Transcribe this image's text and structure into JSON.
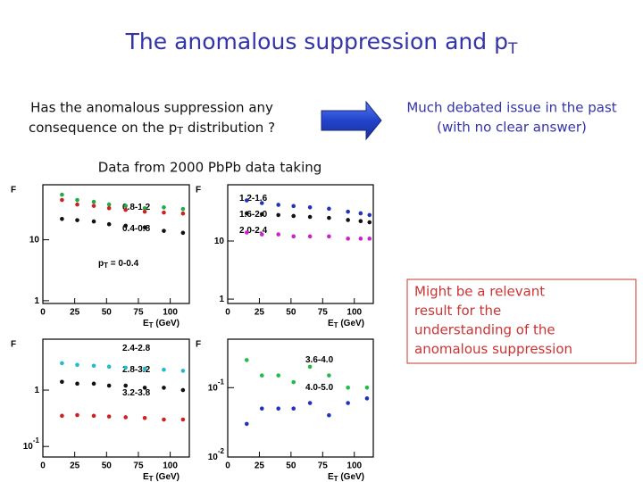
{
  "title": {
    "text": "The anomalous suppression and p",
    "sub": "T"
  },
  "question": {
    "line1": "Has the anomalous suppression any",
    "line2": "consequence on the p",
    "line2_sub": "T",
    "line2_end": " distribution ?"
  },
  "answer": {
    "line1": "Much debated issue in the past",
    "line2": "(with no clear answer)"
  },
  "data_source": "Data from 2000 PbPb data taking",
  "note": [
    "Might be a relevant",
    "result for the",
    "understanding of the",
    "anomalous suppression"
  ],
  "panels": [
    {
      "y_label": "F",
      "x_label": "E",
      "x_label_sub": "T",
      "x_label_end": " (GeV)",
      "xlim": [
        0,
        115
      ],
      "xticks": [
        0,
        25,
        50,
        75,
        100
      ],
      "log_y": true,
      "ylim": [
        0.9,
        80
      ],
      "yticks": [
        1,
        10
      ],
      "labels": [
        {
          "text": "0.8-1.2"
        },
        {
          "text": "0.4-0.8"
        },
        {
          "text": "p",
          "sub": "T",
          "end": " = 0-0.4"
        }
      ],
      "series": [
        {
          "color": "#22aa44",
          "x": [
            15,
            27,
            40,
            52,
            65,
            80,
            95,
            110
          ],
          "values": [
            55,
            45,
            42,
            38,
            36,
            33,
            34,
            32
          ]
        },
        {
          "color": "#cc2222",
          "x": [
            15,
            27,
            40,
            52,
            65,
            80,
            95,
            110
          ],
          "values": [
            45,
            38,
            36,
            33,
            31,
            29,
            28,
            27
          ]
        },
        {
          "color": "#111111",
          "x": [
            15,
            27,
            40,
            52,
            65,
            80,
            95,
            110
          ],
          "values": [
            22,
            21,
            20,
            18,
            17,
            16,
            14,
            13
          ]
        }
      ]
    },
    {
      "y_label": "F",
      "x_label": "E",
      "x_label_sub": "T",
      "x_label_end": " (GeV)",
      "xlim": [
        0,
        115
      ],
      "xticks": [
        0,
        25,
        50,
        75,
        100
      ],
      "log_y": true,
      "ylim": [
        0.84,
        93
      ],
      "yticks": [
        1,
        10
      ],
      "labels": [
        {
          "text": "1.2-1.6"
        },
        {
          "text": "1.6-2.0"
        },
        {
          "text": "2.0-2.4"
        }
      ],
      "series": [
        {
          "color": "#2233bb",
          "x": [
            15,
            27,
            40,
            52,
            65,
            80,
            95,
            105,
            112
          ],
          "values": [
            50,
            45,
            42,
            40,
            38,
            36,
            32,
            30,
            28
          ]
        },
        {
          "color": "#111111",
          "x": [
            15,
            27,
            40,
            52,
            65,
            80,
            95,
            105,
            112
          ],
          "values": [
            30,
            29,
            28,
            27,
            26,
            25,
            23,
            22,
            21
          ]
        },
        {
          "color": "#cc22cc",
          "x": [
            15,
            27,
            40,
            52,
            65,
            80,
            95,
            105,
            112
          ],
          "values": [
            14,
            13,
            13,
            12,
            12,
            12,
            11,
            11,
            11
          ]
        }
      ]
    },
    {
      "y_label": "F",
      "x_label": "E",
      "x_label_sub": "T",
      "x_label_end": " (GeV)",
      "xlim": [
        0,
        115
      ],
      "xticks": [
        0,
        25,
        50,
        75,
        100
      ],
      "log_y": true,
      "ylim": [
        0.065,
        8
      ],
      "yticks": [
        1,
        {
          "value": 0.1,
          "label": "10",
          "exponent": "-1"
        }
      ],
      "labels": [
        {
          "text": "2.4-2.8"
        },
        {
          "text": "2.8-3.2"
        },
        {
          "text": "3.2-3.8"
        }
      ],
      "series": [
        {
          "color": "#22bbcc",
          "x": [
            15,
            27,
            40,
            52,
            65,
            80,
            95,
            110
          ],
          "values": [
            3,
            2.8,
            2.7,
            2.6,
            2.5,
            2.4,
            2.3,
            2.2
          ]
        },
        {
          "color": "#111111",
          "x": [
            15,
            27,
            40,
            52,
            65,
            80,
            95,
            110
          ],
          "values": [
            1.4,
            1.3,
            1.3,
            1.2,
            1.2,
            1.1,
            1.1,
            1
          ]
        },
        {
          "color": "#cc2222",
          "x": [
            15,
            27,
            40,
            52,
            65,
            80,
            95,
            110
          ],
          "values": [
            0.35,
            0.36,
            0.35,
            0.34,
            0.33,
            0.32,
            0.3,
            0.3
          ]
        }
      ]
    },
    {
      "y_label": "F",
      "x_label": "E",
      "x_label_sub": "T",
      "x_label_end": " (GeV)",
      "xlim": [
        0,
        115
      ],
      "xticks": [
        0,
        25,
        50,
        75,
        100
      ],
      "log_y": true,
      "ylim": [
        0.01,
        0.5
      ],
      "yticks": [
        {
          "value": 0.1,
          "label": "10",
          "exponent": "-1"
        },
        {
          "value": 0.01,
          "label": "10",
          "exponent": "-2"
        }
      ],
      "labels": [
        {
          "text": "3.6-4.0"
        },
        {
          "text": "4.0-5.0"
        }
      ],
      "series": [
        {
          "color": "#22bb44",
          "x": [
            15,
            27,
            40,
            52,
            65,
            80,
            95,
            110
          ],
          "values": [
            0.25,
            0.15,
            0.15,
            0.12,
            0.2,
            0.15,
            0.1,
            0.1
          ]
        },
        {
          "color": "#2233bb",
          "x": [
            15,
            27,
            40,
            52,
            65,
            80,
            95,
            110
          ],
          "values": [
            0.03,
            0.05,
            0.05,
            0.05,
            0.06,
            0.04,
            0.06,
            0.07
          ]
        }
      ]
    }
  ]
}
